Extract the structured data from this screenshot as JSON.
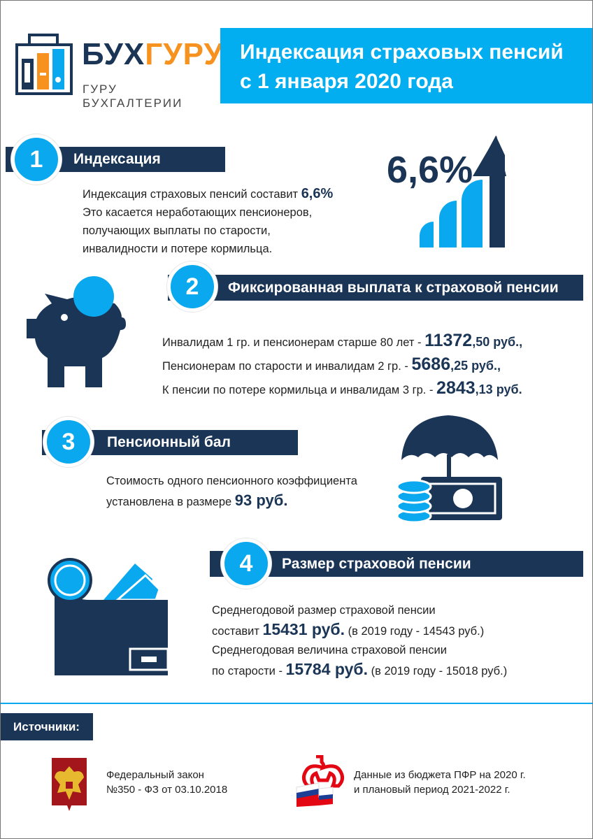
{
  "logo": {
    "brand_left": "БУХ",
    "brand_right": "ГУРУ",
    "tagline": "ГУРУ БУХГАЛТЕРИИ"
  },
  "header": {
    "title_line1": "Индексация страховых пенсий",
    "title_line2": "с 1 января 2020 года"
  },
  "colors": {
    "navy": "#1b3556",
    "blue": "#0aa9ef",
    "orange": "#f7921e"
  },
  "sections": [
    {
      "number": "1",
      "title": "Индексация",
      "text_before": "Индексация страховых пенсий составит ",
      "highlight": "6,6%",
      "lines": [
        "Это касается неработающих пенсионеров,",
        "получающих выплаты по старости,",
        "инвалидности и потере кормильца."
      ],
      "icon": "growth-arrow-icon",
      "icon_label": "6,6%"
    },
    {
      "number": "2",
      "title": "Фиксированная выплата к страховой пенсии",
      "icon": "piggy-bank-icon",
      "rows": [
        {
          "label": "Инвалидам 1 гр. и пенсионерам старше 80 лет - ",
          "int": "11372",
          "frac": ",50 руб.,"
        },
        {
          "label": "Пенсионерам по старости и инвалидам 2 гр. - ",
          "int": "5686",
          "frac": ",25 руб.,"
        },
        {
          "label": "К пенсии по потере кормильца и инвалидам 3 гр. - ",
          "int": "2843",
          "frac": ",13 руб."
        }
      ]
    },
    {
      "number": "3",
      "title": "Пенсионный бал",
      "icon": "umbrella-money-icon",
      "line1": "Стоимость одного пенсионного коэффициента",
      "line2_before": "установлена в размере ",
      "highlight": "93 руб."
    },
    {
      "number": "4",
      "title": "Размер страховой пенсии",
      "icon": "wallet-icon",
      "line1": "Среднегодовой размер страховой пенсии",
      "line2_before": "составит ",
      "line2_hl": "15431 руб.",
      "line2_after": " (в 2019 году - 14543 руб.)",
      "line3": "Среднегодовая величина страховой пенсии",
      "line4_before": "по старости - ",
      "line4_hl": "15784 руб.",
      "line4_after": " (в 2019 году - 15018 руб.)"
    }
  ],
  "sources": {
    "title": "Источники:",
    "items": [
      {
        "icon": "coat-of-arms-icon",
        "line1": "Федеральный закон",
        "line2": "№350 - ФЗ от 03.10.2018"
      },
      {
        "icon": "pfr-logo-icon",
        "line1": "Данные из бюджета ПФР на 2020 г.",
        "line2": "и плановый период 2021-2022 г."
      }
    ]
  }
}
